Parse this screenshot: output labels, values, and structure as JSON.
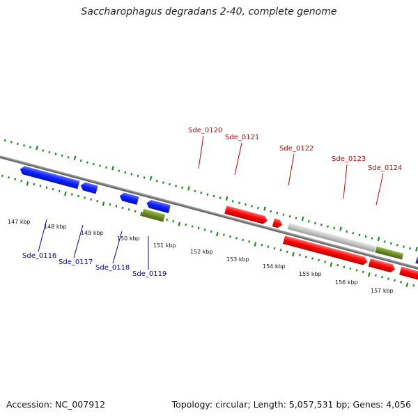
{
  "title": "Saccharophagus degradans 2-40, complete genome",
  "footer": {
    "accession": "Accession: NC_007912",
    "summary": "Topology: circular; Length: 5,057,531 bp; Genes: 4,056"
  },
  "kbp_labels": [
    "147 kbp",
    "148 kbp",
    "149 kbp",
    "150 kbp",
    "151 kbp",
    "152 kbp",
    "153 kbp",
    "154 kbp",
    "155 kbp",
    "156 kbp",
    "157 kbp"
  ],
  "gene_labels_top": [
    "Sde_0120",
    "Sde_0121",
    "Sde_0122",
    "Sde_0123",
    "Sde_0124"
  ],
  "gene_labels_bottom": [
    "Sde_0116",
    "Sde_0117",
    "Sde_0118",
    "Sde_0119"
  ],
  "colors": {
    "forward_gene": "#e41a1c",
    "reverse_gene": "#0a1fff",
    "rna_gene": "#6b8c23",
    "other_feature": "#bdbdbd",
    "purple_feature": "#4a3f8c",
    "backbone": "#7f7f7f",
    "tick": "#1a8a1a",
    "label_top": "#cc0000",
    "label_bottom": "#0000aa"
  }
}
